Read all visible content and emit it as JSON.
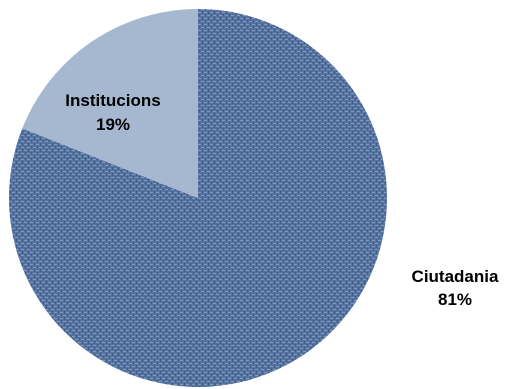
{
  "chart_data": {
    "type": "pie",
    "slices": [
      {
        "label": "Ciutadania",
        "value": 81,
        "value_label": "81%",
        "color": "#4f6fa8"
      },
      {
        "label": "Institucions",
        "value": 19,
        "value_label": "19%",
        "color": "#a5b8d0"
      }
    ],
    "start": "top",
    "direction": "clockwise",
    "legend": "none"
  }
}
